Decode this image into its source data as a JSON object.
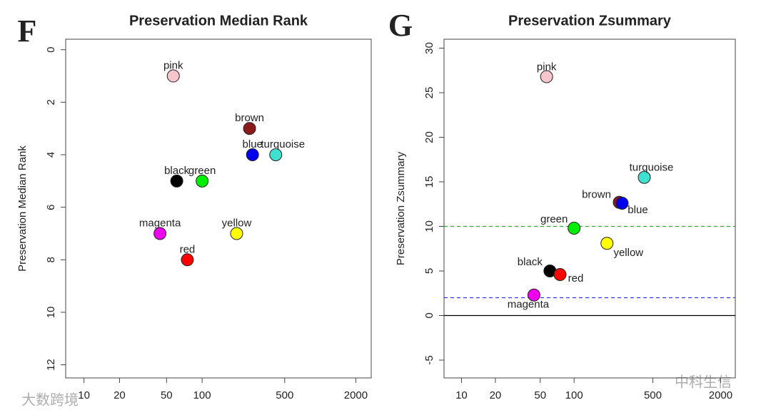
{
  "chart_data": [
    {
      "type": "scatter",
      "panel": "F",
      "title": "Preservation Median Rank",
      "ylabel": "Preservation Median Rank",
      "log": "x",
      "xlim": [
        7,
        2700
      ],
      "ylim": [
        12.5,
        -0.4
      ],
      "xticks": [
        10,
        20,
        50,
        100,
        500,
        2000
      ],
      "yticks": [
        0,
        2,
        4,
        6,
        8,
        10,
        12
      ],
      "labels": [
        "pink",
        "brown",
        "blue",
        "turquoise",
        "black",
        "green",
        "magenta",
        "yellow",
        "red"
      ],
      "colors": [
        "#f7c5cc",
        "#8b1a1a",
        "#0000ee",
        "#40e0d0",
        "#000000",
        "#00ee00",
        "#ee00ee",
        "#ffff00",
        "#ff0000"
      ],
      "x": [
        57,
        252,
        267,
        420,
        61,
        100,
        44,
        196,
        75
      ],
      "values": [
        1,
        3,
        4,
        4,
        5,
        5,
        7,
        7,
        8
      ]
    },
    {
      "type": "scatter",
      "panel": "G",
      "title": "Preservation Zsummary",
      "ylabel": "Preservation Zsummary",
      "log": "x",
      "xlim": [
        7,
        2700
      ],
      "ylim": [
        -7,
        31
      ],
      "xticks": [
        10,
        20,
        50,
        100,
        500,
        2000
      ],
      "yticks": [
        -5,
        0,
        5,
        10,
        15,
        20,
        25,
        30
      ],
      "labels": [
        "pink",
        "brown",
        "blue",
        "turquoise",
        "black",
        "green",
        "magenta",
        "yellow",
        "red"
      ],
      "colors": [
        "#f7c5cc",
        "#8b1a1a",
        "#0000ee",
        "#40e0d0",
        "#000000",
        "#00ee00",
        "#ee00ee",
        "#ffff00",
        "#ff0000"
      ],
      "x": [
        57,
        252,
        267,
        420,
        61,
        100,
        44,
        196,
        75
      ],
      "values": [
        26.8,
        12.7,
        12.6,
        15.5,
        5.0,
        9.8,
        2.3,
        8.1,
        4.6
      ],
      "hlines": [
        {
          "value": 10,
          "color": "#33aa33",
          "dash": true
        },
        {
          "value": 2,
          "color": "#3333ff",
          "dash": true
        },
        {
          "value": 0,
          "color": "#000000",
          "dash": false
        }
      ]
    }
  ],
  "watermarks": [
    "大数跨境",
    "中科生信"
  ]
}
